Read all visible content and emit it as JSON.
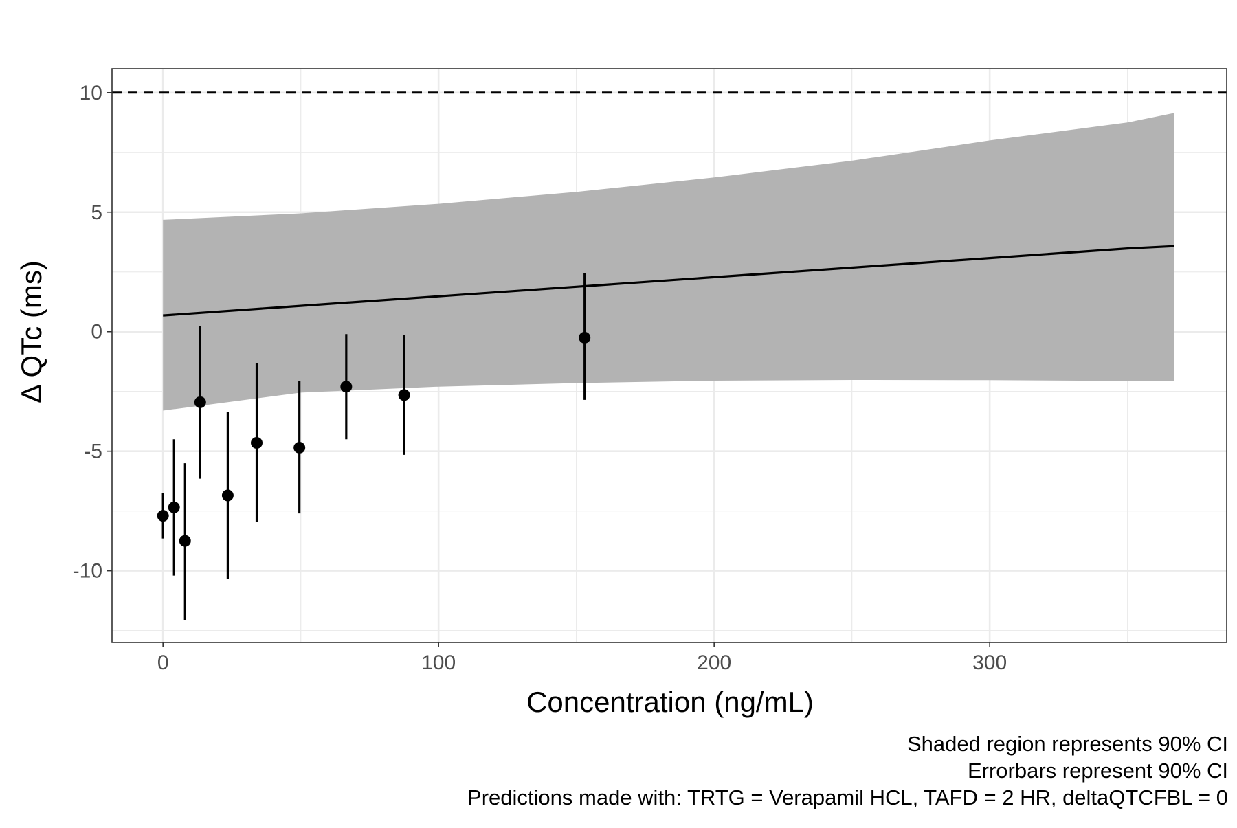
{
  "chart_data": {
    "type": "scatter",
    "title": "",
    "xlabel": "Concentration (ng/mL)",
    "ylabel": "Δ QTc (ms)",
    "xlim": [
      -18.5,
      386
    ],
    "ylim": [
      -13,
      11
    ],
    "x_ticks": [
      0,
      100,
      200,
      300
    ],
    "x_tick_labels": [
      "0",
      "100",
      "200",
      "300"
    ],
    "y_ticks": [
      -10,
      -5,
      0,
      5,
      10
    ],
    "y_tick_labels": [
      "-10",
      "-5",
      "0",
      "5",
      "10"
    ],
    "grid": true,
    "legend": "none",
    "threshold_line": {
      "y": 10,
      "style": "dashed"
    },
    "prediction": {
      "x": [
        0,
        50,
        100,
        150,
        200,
        250,
        300,
        350,
        367
      ],
      "estimate": [
        0.68,
        1.08,
        1.48,
        1.88,
        2.28,
        2.68,
        3.08,
        3.48,
        3.58
      ],
      "ci_lower": [
        -3.3,
        -2.55,
        -2.3,
        -2.15,
        -2.05,
        -2.02,
        -2.03,
        -2.06,
        -2.07
      ],
      "ci_upper": [
        4.68,
        4.95,
        5.35,
        5.85,
        6.45,
        7.15,
        8.0,
        8.75,
        9.15
      ]
    },
    "observed": {
      "x": [
        0,
        4,
        8,
        13.5,
        23.5,
        34,
        49.5,
        66.5,
        87.5,
        153
      ],
      "y": [
        -7.7,
        -7.35,
        -8.75,
        -2.95,
        -6.85,
        -4.65,
        -4.85,
        -2.3,
        -2.65,
        -0.25
      ],
      "lower": [
        -8.65,
        -10.2,
        -12.05,
        -6.15,
        -10.35,
        -7.95,
        -7.6,
        -4.5,
        -5.15,
        -2.85
      ],
      "upper": [
        -6.75,
        -4.5,
        -5.5,
        0.25,
        -3.35,
        -1.3,
        -2.05,
        -0.1,
        -0.15,
        2.45
      ]
    },
    "colors": {
      "band": "#b3b3b3",
      "line": "#000000",
      "points": "#000000",
      "grid": "#ebebeb",
      "panel_border": "#333333"
    }
  },
  "captions": [
    "Shaded region represents 90% CI",
    "Errorbars represent 90% CI",
    "Predictions made with: TRTG = Verapamil HCL, TAFD = 2 HR, deltaQTCFBL = 0"
  ]
}
